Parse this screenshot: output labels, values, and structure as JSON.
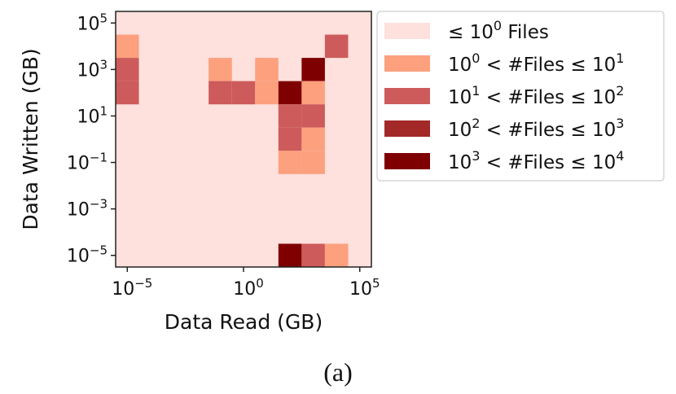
{
  "chart_data": {
    "type": "heatmap",
    "xlabel": "Data Read (GB)",
    "ylabel": "Data Written (GB)",
    "caption": "(a)",
    "x_scale": "log",
    "y_scale": "log",
    "xlim": [
      1e-06,
      1000000
    ],
    "ylim": [
      1e-06,
      1000000
    ],
    "xticks": [
      {
        "value": 1e-05,
        "base": "10",
        "exp": "−5"
      },
      {
        "value": 1,
        "base": "10",
        "exp": "0"
      },
      {
        "value": 100000,
        "base": "10",
        "exp": "5"
      }
    ],
    "yticks": [
      {
        "value": 100000,
        "base": "10",
        "exp": "5"
      },
      {
        "value": 1000,
        "base": "10",
        "exp": "3"
      },
      {
        "value": 10,
        "base": "10",
        "exp": "1"
      },
      {
        "value": 0.1,
        "base": "10",
        "exp": "−1"
      },
      {
        "value": 0.001,
        "base": "10",
        "exp": "−3"
      },
      {
        "value": 1e-05,
        "base": "10",
        "exp": "−5"
      }
    ],
    "bin_width_decades": 1,
    "default_level": 0,
    "cells": [
      {
        "x": 1e-05,
        "y": 10000,
        "level": 1
      },
      {
        "x": 10000,
        "y": 10000,
        "level": 2
      },
      {
        "x": 1e-05,
        "y": 1000,
        "level": 2
      },
      {
        "x": 0.1,
        "y": 1000,
        "level": 1
      },
      {
        "x": 10,
        "y": 1000,
        "level": 1
      },
      {
        "x": 1000,
        "y": 1000,
        "level": 4
      },
      {
        "x": 1e-05,
        "y": 100,
        "level": 2
      },
      {
        "x": 0.1,
        "y": 100,
        "level": 2
      },
      {
        "x": 1,
        "y": 100,
        "level": 2
      },
      {
        "x": 10,
        "y": 100,
        "level": 1
      },
      {
        "x": 100,
        "y": 100,
        "level": 4
      },
      {
        "x": 1000,
        "y": 100,
        "level": 1
      },
      {
        "x": 100,
        "y": 10,
        "level": 2
      },
      {
        "x": 1000,
        "y": 10,
        "level": 2
      },
      {
        "x": 100,
        "y": 1,
        "level": 2
      },
      {
        "x": 1000,
        "y": 1,
        "level": 1
      },
      {
        "x": 100,
        "y": 0.1,
        "level": 1
      },
      {
        "x": 1000,
        "y": 0.1,
        "level": 1
      },
      {
        "x": 100,
        "y": 1e-05,
        "level": 4
      },
      {
        "x": 1000,
        "y": 1e-05,
        "level": 2
      },
      {
        "x": 10000,
        "y": 1e-05,
        "level": 1
      }
    ],
    "legend_placement": "right",
    "legend": [
      {
        "color": "#fee0dc",
        "parts": [
          {
            "t": "≤ 10"
          },
          {
            "sup": "0"
          },
          {
            "t": " Files"
          }
        ]
      },
      {
        "color": "#fca07e",
        "parts": [
          {
            "t": "10"
          },
          {
            "sup": "0"
          },
          {
            "t": " < #Files ≤ 10"
          },
          {
            "sup": "1"
          }
        ]
      },
      {
        "color": "#cd5b5b",
        "parts": [
          {
            "t": "10"
          },
          {
            "sup": "1"
          },
          {
            "t": " < #Files ≤ 10"
          },
          {
            "sup": "2"
          }
        ]
      },
      {
        "color": "#a32828",
        "parts": [
          {
            "t": "10"
          },
          {
            "sup": "2"
          },
          {
            "t": " < #Files ≤ 10"
          },
          {
            "sup": "3"
          }
        ]
      },
      {
        "color": "#7f0000",
        "parts": [
          {
            "t": "10"
          },
          {
            "sup": "3"
          },
          {
            "t": " < #Files ≤ 10"
          },
          {
            "sup": "4"
          }
        ]
      }
    ]
  }
}
